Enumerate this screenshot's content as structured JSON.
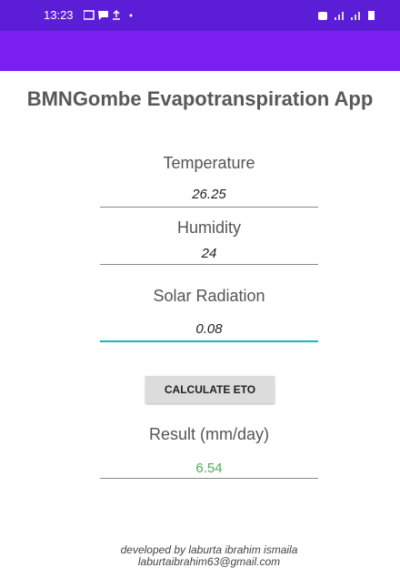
{
  "status_bar": {
    "time": "13:23"
  },
  "header": {
    "title": "BMNGombe Evapotranspiration App"
  },
  "form": {
    "fields": [
      {
        "label": "Temperature",
        "value": "26.25"
      },
      {
        "label": "Humidity",
        "value": "24"
      },
      {
        "label": "Solar Radiation",
        "value": "0.08"
      }
    ],
    "button": "CALCULATE ETO",
    "result": {
      "label": "Result (mm/day)",
      "value": "6.54"
    }
  },
  "footer": {
    "credit": "developed by laburta ibrahim ismaila",
    "email": "laburtaibrahim63@gmail.com"
  }
}
